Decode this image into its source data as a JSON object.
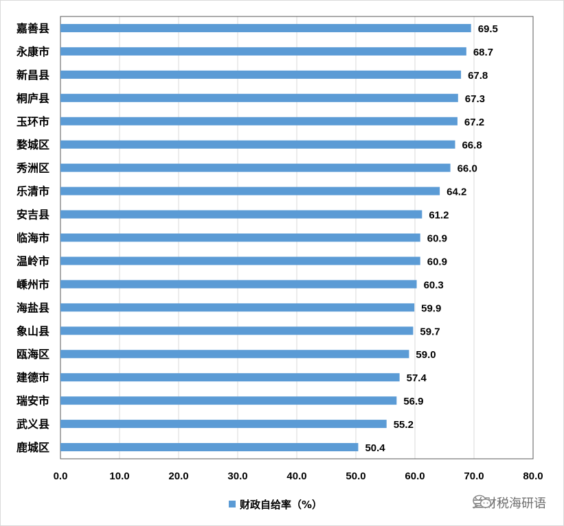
{
  "chart_data": {
    "type": "bar",
    "orientation": "horizontal",
    "categories": [
      "嘉善县",
      "永康市",
      "新昌县",
      "桐庐县",
      "玉环市",
      "婺城区",
      "秀洲区",
      "乐清市",
      "安吉县",
      "临海市",
      "温岭市",
      "嵊州市",
      "海盐县",
      "象山县",
      "瓯海区",
      "建德市",
      "瑞安市",
      "武义县",
      "鹿城区"
    ],
    "series": [
      {
        "name": "财政自给率（%）",
        "values": [
          69.5,
          68.7,
          67.8,
          67.3,
          67.2,
          66.8,
          66.0,
          64.2,
          61.2,
          60.9,
          60.9,
          60.3,
          59.9,
          59.7,
          59.0,
          57.4,
          56.9,
          55.2,
          50.4
        ],
        "value_labels": [
          "69.5",
          "68.7",
          "67.8",
          "67.3",
          "67.2",
          "66.8",
          "66.0",
          "64.2",
          "61.2",
          "60.9",
          "60.9",
          "60.3",
          "59.9",
          "59.7",
          "59.0",
          "57.4",
          "56.9",
          "55.2",
          "50.4"
        ],
        "color": "#5b9bd5"
      }
    ],
    "xlim": [
      0,
      80
    ],
    "xticks": [
      "0.0",
      "10.0",
      "20.0",
      "30.0",
      "40.0",
      "50.0",
      "60.0",
      "70.0",
      "80.0"
    ],
    "grid": "vertical",
    "legend_position": "bottom",
    "title": "",
    "xlabel": "",
    "ylabel": ""
  },
  "watermark": {
    "text": "兰财税海研语",
    "icon": "wechat-icon"
  }
}
